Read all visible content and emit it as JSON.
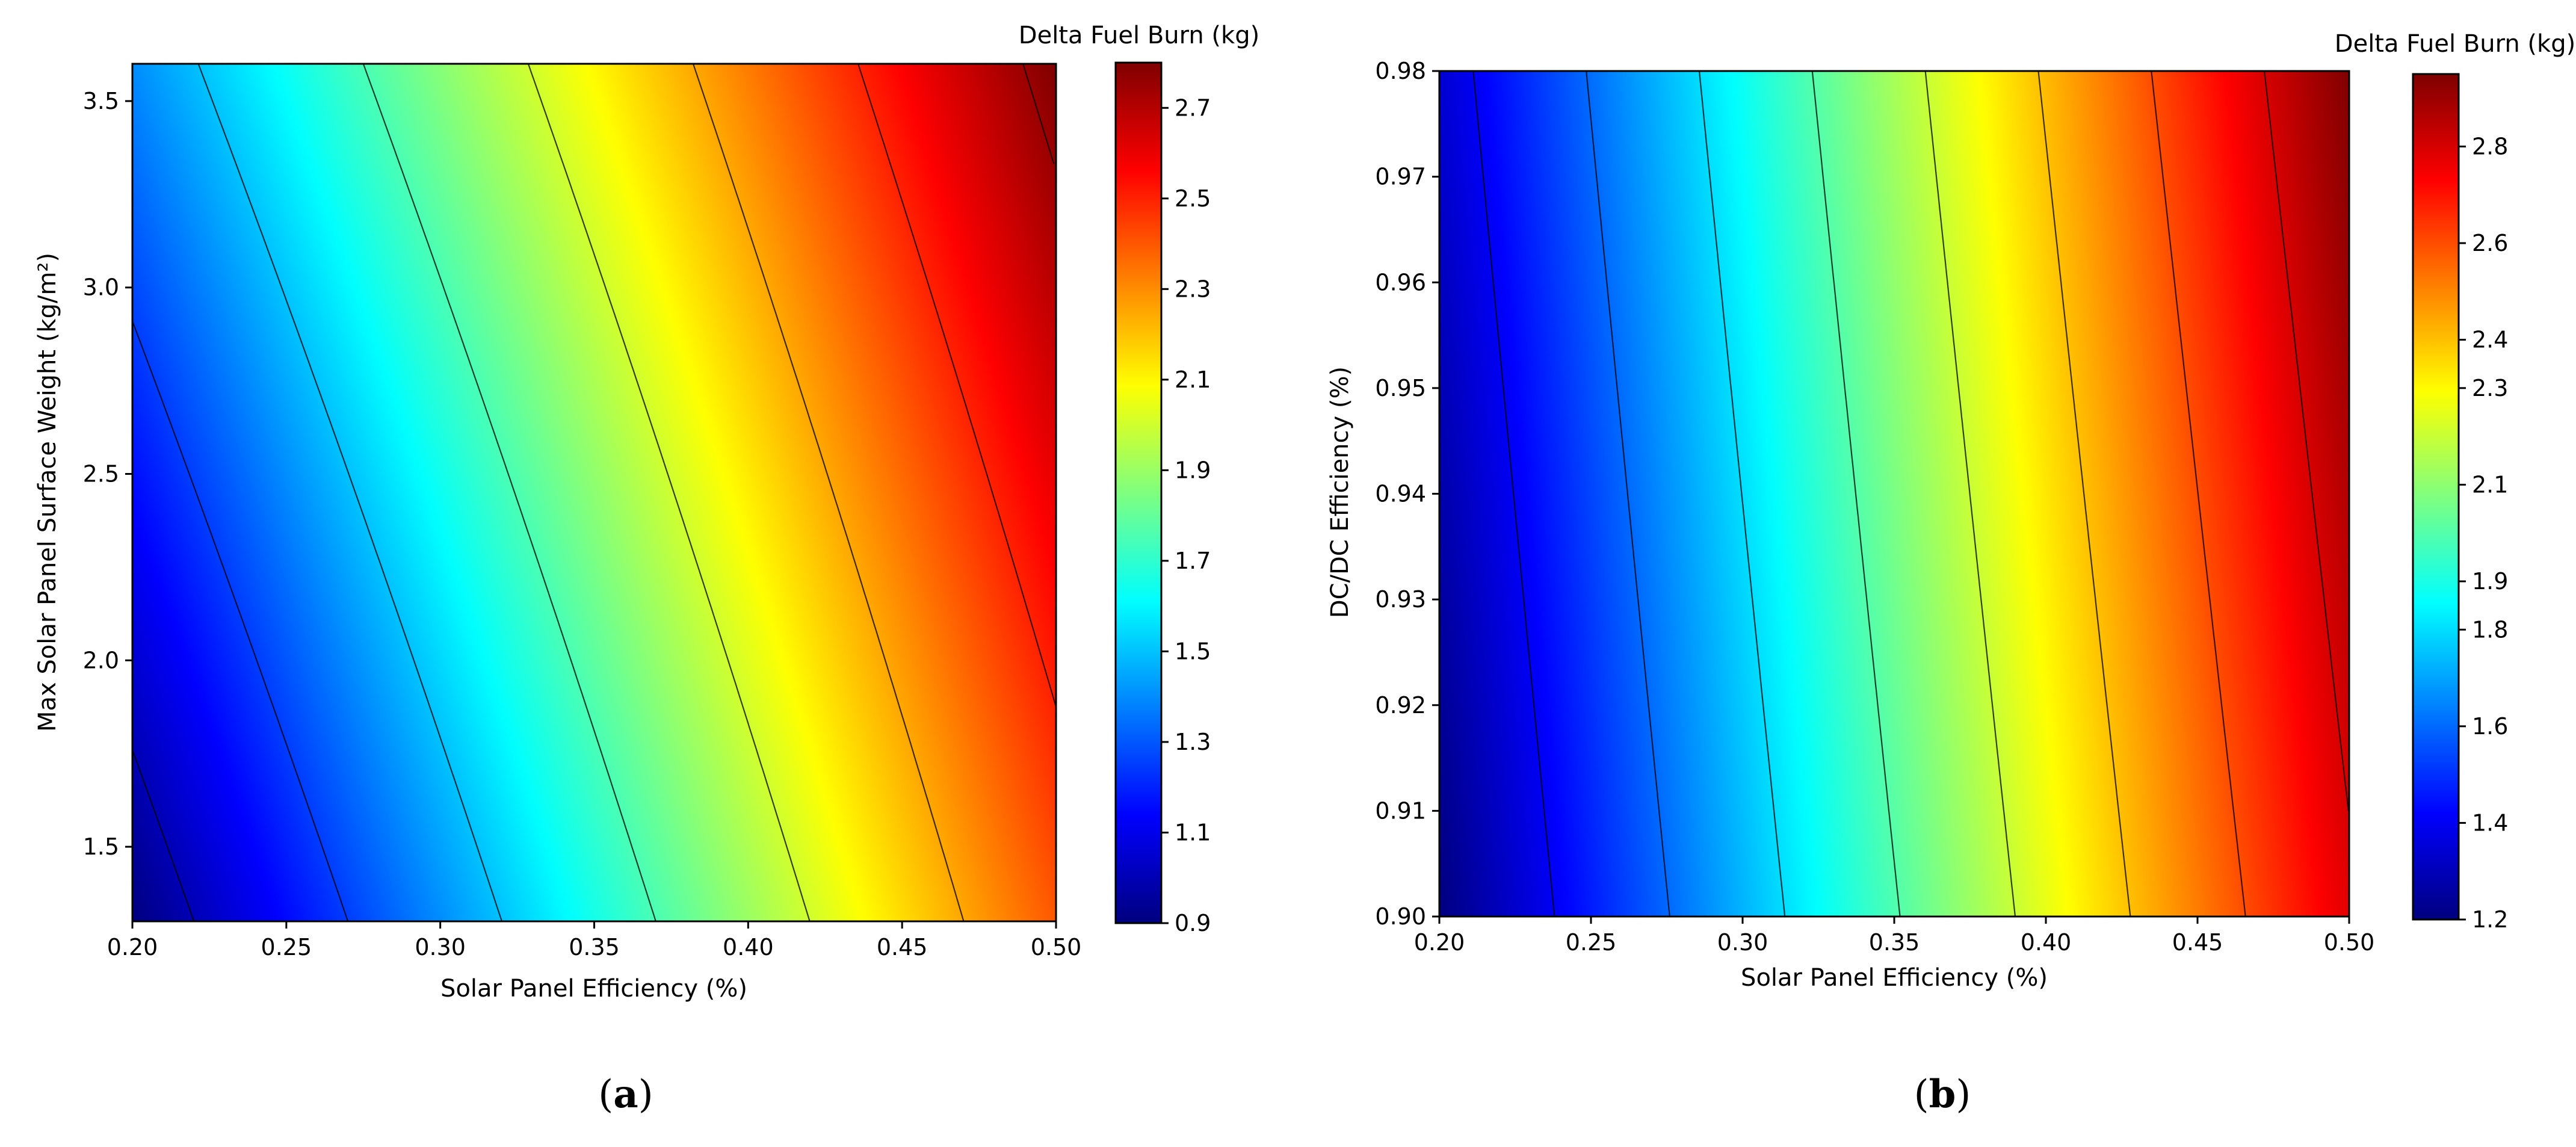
{
  "chart_data": [
    {
      "type": "heatmap",
      "panel_label": "a",
      "xlabel": "Solar Panel Efficiency (%)",
      "ylabel": "Max Solar Panel Surface Weight (kg/m²)",
      "xlim": [
        0.2,
        0.5
      ],
      "ylim": [
        1.3,
        3.6
      ],
      "x_ticks": [
        "0.20",
        "0.25",
        "0.30",
        "0.35",
        "0.40",
        "0.45",
        "0.50"
      ],
      "y_ticks": [
        "1.5",
        "2.0",
        "2.5",
        "3.0",
        "3.5"
      ],
      "colormap": "jet",
      "colorbar_label": "Delta Fuel Burn (kg)",
      "colorbar_range": [
        0.9,
        2.8
      ],
      "colorbar_ticks": [
        "0.9",
        "1.1",
        "1.3",
        "1.5",
        "1.7",
        "1.9",
        "2.1",
        "2.3",
        "2.5",
        "2.7"
      ],
      "grid": false,
      "corner_values": {
        "x0_y0": 0.9,
        "x1_y0": 2.4,
        "x0_y1": 1.4,
        "x1_y1": 2.8
      },
      "contour_levels": [
        1.0,
        1.25,
        1.5,
        1.75,
        2.0,
        2.25,
        2.5,
        2.75
      ]
    },
    {
      "type": "heatmap",
      "panel_label": "b",
      "xlabel": "Solar Panel Efficiency (%)",
      "ylabel": "DC/DC Efficiency (%)",
      "xlim": [
        0.2,
        0.5
      ],
      "ylim": [
        0.9,
        0.98
      ],
      "x_ticks": [
        "0.20",
        "0.25",
        "0.30",
        "0.35",
        "0.40",
        "0.45",
        "0.50"
      ],
      "y_ticks": [
        "0.90",
        "0.91",
        "0.92",
        "0.93",
        "0.94",
        "0.95",
        "0.96",
        "0.97",
        "0.98"
      ],
      "colormap": "jet",
      "colorbar_label": "Delta Fuel Burn (kg)",
      "colorbar_range": [
        1.2,
        2.95
      ],
      "colorbar_ticks": [
        "1.2",
        "1.4",
        "1.6",
        "1.8",
        "1.9",
        "2.1",
        "2.3",
        "2.4",
        "2.6",
        "2.8"
      ],
      "grid": false,
      "corner_values": {
        "x0_y0": 1.2,
        "x1_y0": 2.78,
        "x0_y1": 1.34,
        "x1_y1": 2.95
      },
      "contour_levels": [
        1.4,
        1.6,
        1.8,
        2.0,
        2.2,
        2.4,
        2.6,
        2.8
      ]
    }
  ]
}
